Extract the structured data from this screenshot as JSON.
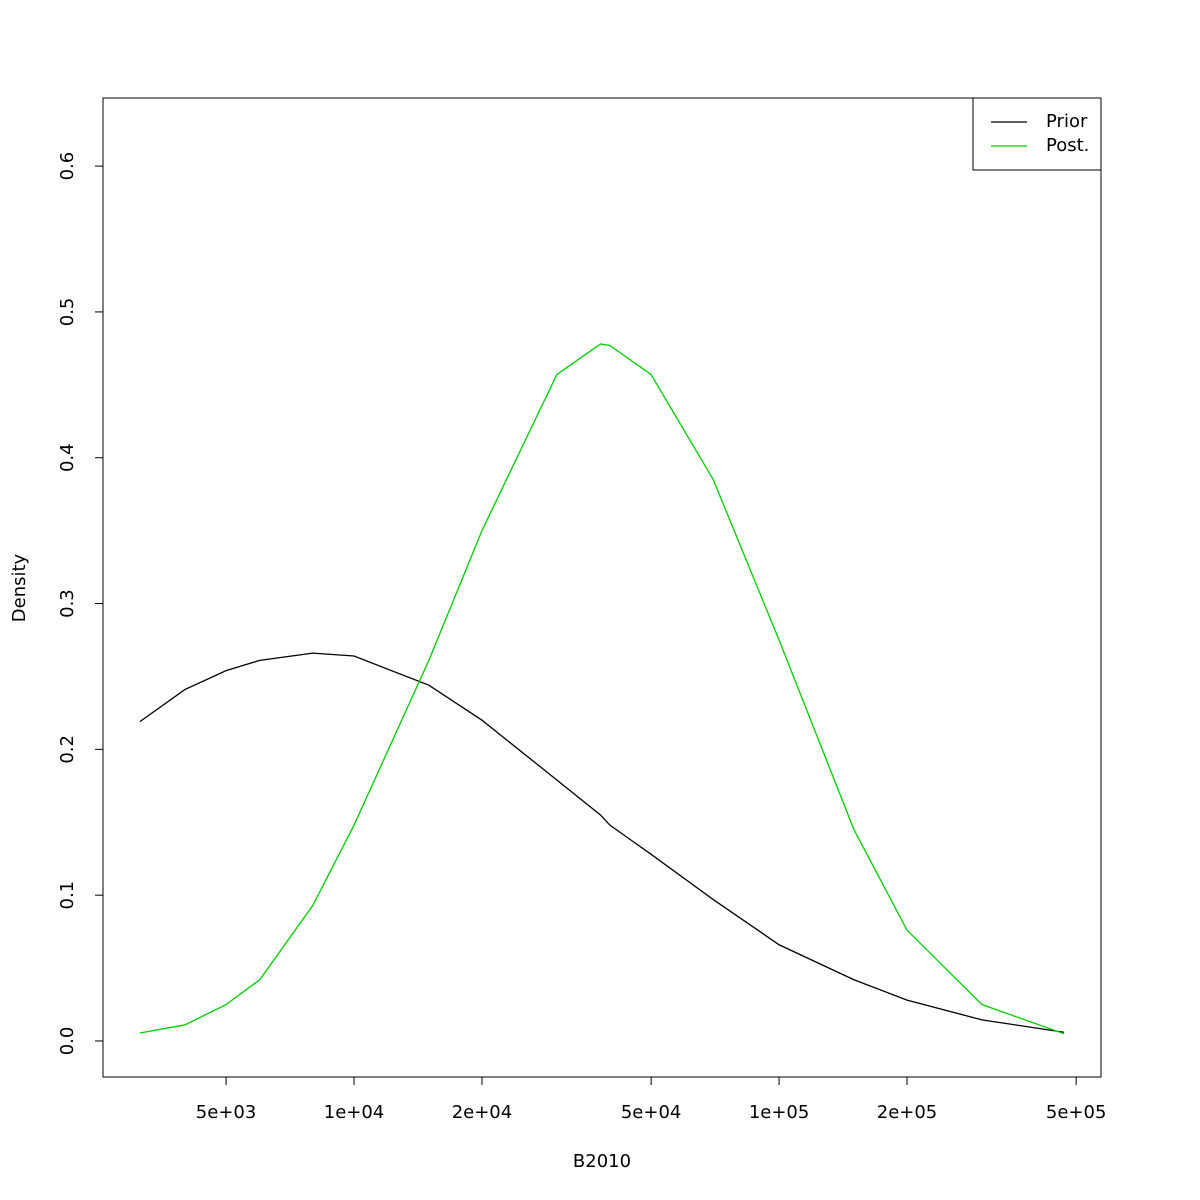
{
  "chart_data": {
    "type": "line",
    "x_label": "B2010",
    "y_label": "Density",
    "x": [
      3135,
      4000,
      5000,
      6000,
      8000,
      10000,
      15000,
      20000,
      30000,
      38000,
      40000,
      50000,
      70000,
      100000,
      150000,
      200000,
      300000,
      468000
    ],
    "series": [
      {
        "name": "Prior",
        "color": "#000000",
        "values": [
          0.219,
          0.241,
          0.254,
          0.261,
          0.266,
          0.264,
          0.244,
          0.22,
          0.179,
          0.155,
          0.148,
          0.128,
          0.097,
          0.066,
          0.042,
          0.028,
          0.0145,
          0.006
        ]
      },
      {
        "name": "Post.",
        "color": "#00cd00",
        "values": [
          0.0055,
          0.011,
          0.025,
          0.042,
          0.093,
          0.148,
          0.261,
          0.35,
          0.457,
          0.478,
          0.477,
          0.457,
          0.385,
          0.275,
          0.145,
          0.076,
          0.025,
          0.005
        ]
      }
    ],
    "xlog": true,
    "xlim": [
      2567,
      572000
    ],
    "ylim": [
      -0.0247,
      0.6467
    ],
    "xticks": [
      {
        "value": 5000,
        "label": "5e+03"
      },
      {
        "value": 10000,
        "label": "1e+04"
      },
      {
        "value": 20000,
        "label": "2e+04"
      },
      {
        "value": 50000,
        "label": "5e+04"
      },
      {
        "value": 100000,
        "label": "1e+05"
      },
      {
        "value": 200000,
        "label": "2e+05"
      },
      {
        "value": 500000,
        "label": "5e+05"
      }
    ],
    "yticks": [
      {
        "value": 0,
        "label": "0.0"
      },
      0.1,
      0.2,
      0.3,
      0.4,
      0.5,
      0.6
    ],
    "legend": "top-right"
  }
}
